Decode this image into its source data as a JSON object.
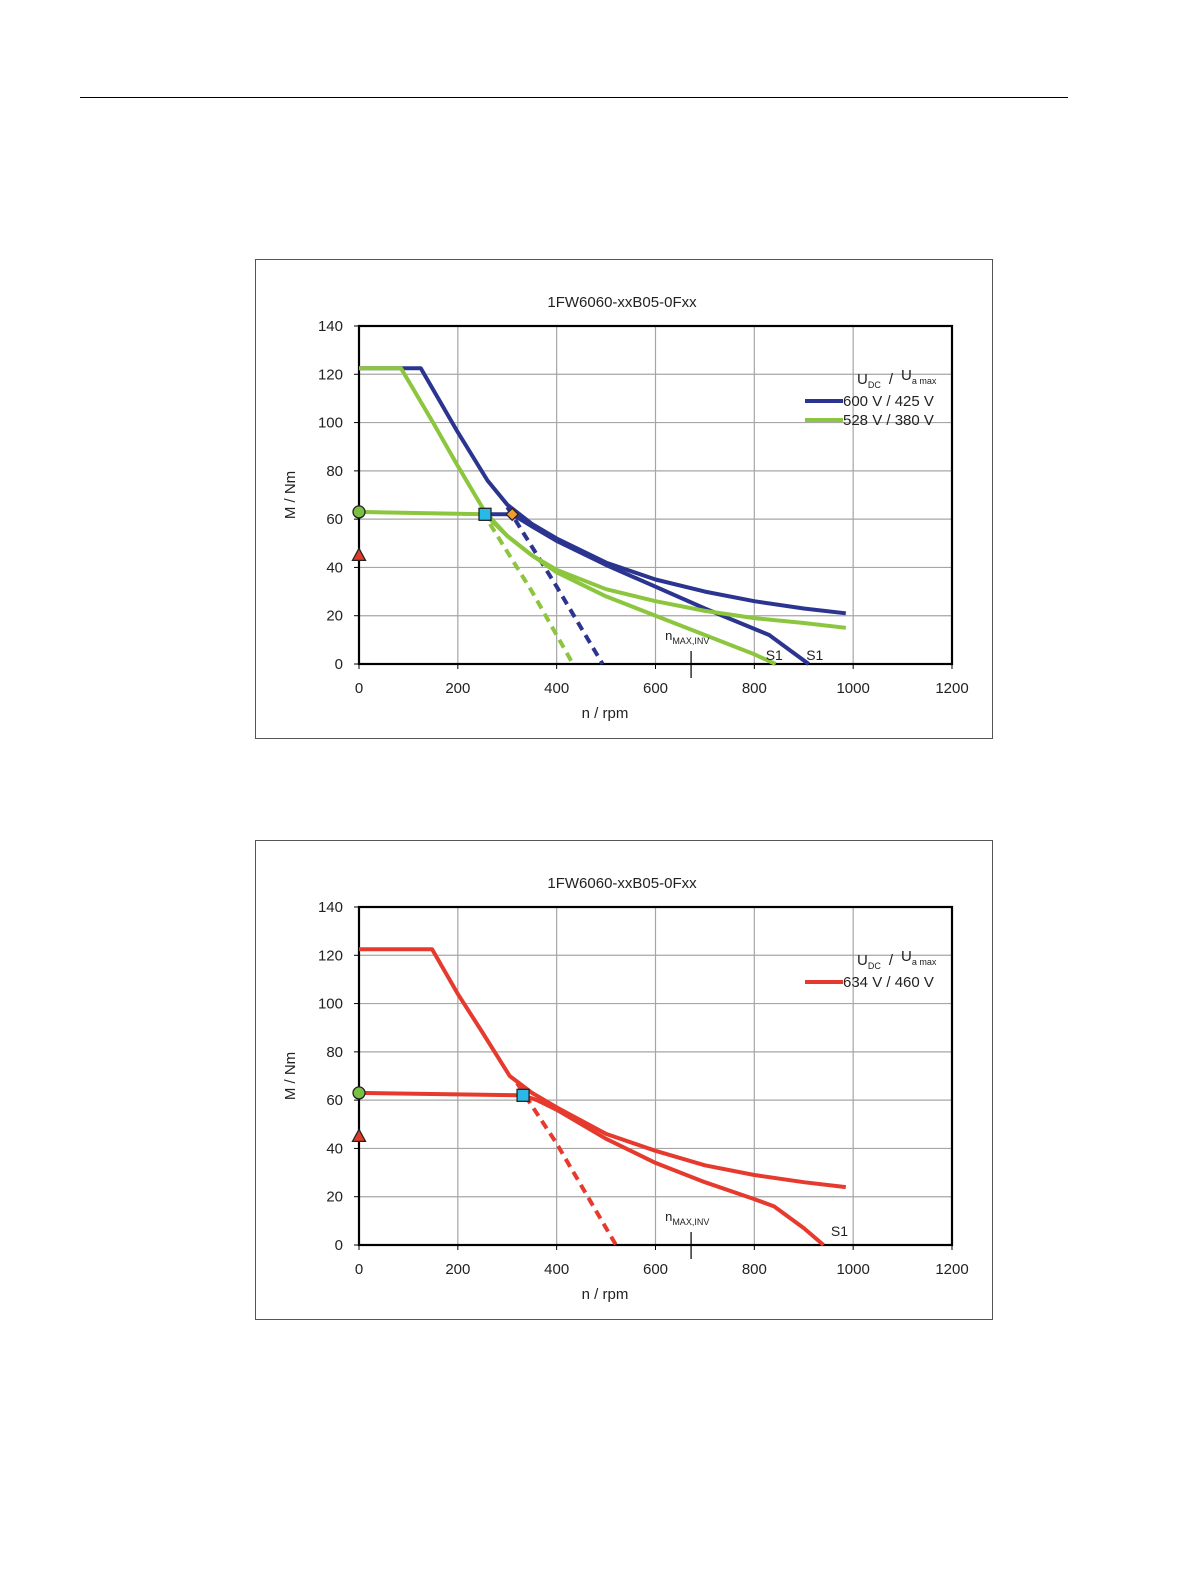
{
  "colors": {
    "blue": "#2b3590",
    "green": "#8cc63e",
    "red": "#e63a2e",
    "grid": "#a6a6a6",
    "marker_circle": "#7ac143",
    "marker_triangle": "#e03a2a",
    "marker_square": "#29b9e8",
    "marker_diamond": "#f39a32"
  },
  "chart_data": [
    {
      "type": "line",
      "title": "1FW6060-xxB05-0Fxx",
      "xlabel": "n / rpm",
      "ylabel": "M / Nm",
      "xlim": [
        0,
        1200
      ],
      "ylim": [
        0,
        140
      ],
      "xticks": [
        0,
        200,
        400,
        600,
        800,
        1000,
        1200
      ],
      "yticks": [
        0,
        20,
        40,
        60,
        80,
        100,
        120,
        140
      ],
      "xtick_labels": [
        "0",
        "200",
        "400",
        "600",
        "800",
        "1000",
        "1200"
      ],
      "ytick_labels": [
        "0",
        "20",
        "40",
        "60",
        "80",
        "100",
        "120",
        "140"
      ],
      "grid": true,
      "legend": {
        "placement": "top-right",
        "header_main_1": "U",
        "header_sub_1": "DC",
        "header_sep": "/",
        "header_main_2": "U",
        "header_sub_2": "a max",
        "entries": [
          "600 V / 425 V",
          "528 V / 380 V"
        ]
      },
      "annotations": {
        "nmax_main": "n",
        "nmax_sub": "MAX,INV",
        "nmax_value": 672,
        "s1_labels": [
          "S1",
          "S1"
        ]
      },
      "series": [
        {
          "name": "600 V / 425 V peak",
          "color": "blue",
          "dashed": false,
          "x": [
            0,
            125,
            200,
            260,
            300,
            350,
            400,
            500,
            600,
            700,
            800,
            900,
            985
          ],
          "y": [
            122.5,
            122.5,
            96,
            76,
            66,
            58,
            52,
            42,
            35,
            30,
            26,
            23,
            21
          ]
        },
        {
          "name": "600 V / 425 V S1",
          "color": "blue",
          "dashed": false,
          "x": [
            255,
            310,
            350,
            400,
            500,
            600,
            700,
            830,
            870,
            910
          ],
          "y": [
            62,
            62,
            57,
            51,
            41,
            32,
            23,
            12,
            6,
            0
          ]
        },
        {
          "name": "600 V / 425 V extrapolated",
          "color": "blue",
          "dashed": true,
          "x": [
            300,
            400,
            493
          ],
          "y": [
            65,
            32,
            0
          ]
        },
        {
          "name": "528 V / 380 V peak",
          "color": "green",
          "dashed": false,
          "x": [
            0,
            85,
            150,
            200,
            255,
            300,
            350,
            400,
            500,
            600,
            700,
            800,
            900,
            985
          ],
          "y": [
            122.5,
            122.5,
            100,
            82,
            63,
            53,
            45,
            39,
            31,
            26,
            22,
            19,
            17,
            15
          ]
        },
        {
          "name": "528 V / 380 V S1",
          "color": "green",
          "dashed": false,
          "x": [
            0,
            255,
            300,
            350,
            400,
            500,
            600,
            700,
            800,
            843
          ],
          "y": [
            63,
            62,
            53,
            45,
            38,
            28,
            20,
            12,
            4,
            0
          ]
        },
        {
          "name": "528 V / 380 V extrapolated",
          "color": "green",
          "dashed": true,
          "x": [
            265,
            350,
            433
          ],
          "y": [
            58,
            30,
            0
          ]
        }
      ],
      "markers": [
        {
          "shape": "circle",
          "color": "marker_circle",
          "x": 0,
          "y": 63
        },
        {
          "shape": "triangle",
          "color": "marker_triangle",
          "x": 0,
          "y": 45
        },
        {
          "shape": "square",
          "color": "marker_square",
          "x": 255,
          "y": 62
        },
        {
          "shape": "diamond",
          "color": "marker_diamond",
          "x": 310,
          "y": 62
        }
      ]
    },
    {
      "type": "line",
      "title": "1FW6060-xxB05-0Fxx",
      "xlabel": "n / rpm",
      "ylabel": "M / Nm",
      "xlim": [
        0,
        1200
      ],
      "ylim": [
        0,
        140
      ],
      "xticks": [
        0,
        200,
        400,
        600,
        800,
        1000,
        1200
      ],
      "yticks": [
        0,
        20,
        40,
        60,
        80,
        100,
        120,
        140
      ],
      "xtick_labels": [
        "0",
        "200",
        "400",
        "600",
        "800",
        "1000",
        "1200"
      ],
      "ytick_labels": [
        "0",
        "20",
        "40",
        "60",
        "80",
        "100",
        "120",
        "140"
      ],
      "grid": true,
      "legend": {
        "placement": "top-right",
        "header_main_1": "U",
        "header_sub_1": "DC",
        "header_sep": "/",
        "header_main_2": "U",
        "header_sub_2": "a max",
        "entries": [
          "634 V / 460 V"
        ]
      },
      "annotations": {
        "nmax_main": "n",
        "nmax_sub": "MAX,INV",
        "nmax_value": 672,
        "s1_labels": [
          "S1"
        ]
      },
      "series": [
        {
          "name": "634 V / 460 V peak",
          "color": "red",
          "dashed": false,
          "x": [
            0,
            148,
            200,
            250,
            305,
            350,
            400,
            500,
            600,
            700,
            800,
            900,
            985
          ],
          "y": [
            122.5,
            122.5,
            104,
            88,
            70,
            63,
            57,
            46,
            39,
            33,
            29,
            26,
            24
          ]
        },
        {
          "name": "634 V / 460 V S1",
          "color": "red",
          "dashed": false,
          "x": [
            0,
            332,
            360,
            400,
            500,
            600,
            700,
            800,
            840,
            900,
            940
          ],
          "y": [
            63,
            62,
            60,
            56,
            44,
            34,
            26,
            19,
            16,
            7,
            0
          ]
        },
        {
          "name": "634 V / 460 V extrapolated",
          "color": "red",
          "dashed": true,
          "x": [
            320,
            400,
            520
          ],
          "y": [
            67,
            42,
            0
          ]
        }
      ],
      "markers": [
        {
          "shape": "circle",
          "color": "marker_circle",
          "x": 0,
          "y": 63
        },
        {
          "shape": "triangle",
          "color": "marker_triangle",
          "x": 0,
          "y": 45
        },
        {
          "shape": "square",
          "color": "marker_square",
          "x": 332,
          "y": 62
        }
      ]
    }
  ]
}
